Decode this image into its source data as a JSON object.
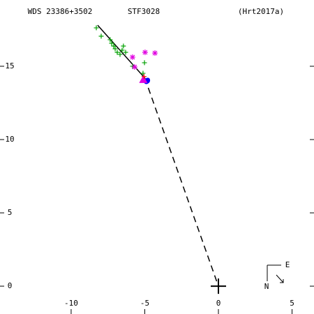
{
  "chart_data": {
    "type": "scatter",
    "title": "WDS 23386+3502",
    "subtitle": "STF3028",
    "reference": "(Hrt2017a)",
    "xlim": [
      -14.83,
      6.49
    ],
    "ylim": [
      -1.9,
      19.52
    ],
    "xticks": [
      -10,
      -5,
      0,
      5
    ],
    "yticks": [
      0,
      5,
      10,
      15
    ],
    "compass": {
      "east": "E",
      "north": "N"
    },
    "series": [
      {
        "marker": "line",
        "dash": false,
        "color": "#000000",
        "x": [
          -8.2,
          -5.0
        ],
        "values": [
          17.8,
          14.2
        ]
      },
      {
        "marker": "line",
        "dash": true,
        "color": "#000000",
        "x": [
          -5.0,
          0
        ],
        "values": [
          14.2,
          0
        ]
      },
      {
        "marker": "plus",
        "color": "#00a000",
        "x": [
          -8.29,
          -7.96,
          -7.35,
          -7.25,
          -7.11,
          -7.01,
          -6.87,
          -6.68,
          -6.54,
          -6.45,
          -6.3,
          -5.83,
          -5.12,
          -5.02
        ],
        "values": [
          17.62,
          17.05,
          16.81,
          16.57,
          16.38,
          16.19,
          15.95,
          15.81,
          16.1,
          16.38,
          15.95,
          15.0,
          14.52,
          15.24
        ]
      },
      {
        "marker": "asterisk",
        "color": "#e000e0",
        "x": [
          -5.83,
          -4.98,
          -4.31,
          -5.69
        ],
        "values": [
          15.62,
          15.95,
          15.9,
          14.95
        ]
      },
      {
        "marker": "circle",
        "color": "#0000ff",
        "x": [
          -4.85
        ],
        "values": [
          14.0
        ]
      },
      {
        "marker": "triangle",
        "color": "#e000e0",
        "x": [
          -5.1
        ],
        "values": [
          14.1
        ]
      },
      {
        "marker": "plus",
        "color": "#ff0000",
        "x": [
          -5.05
        ],
        "values": [
          14.3
        ]
      },
      {
        "marker": "bigplus",
        "color": "#000000",
        "x": [
          0
        ],
        "values": [
          0
        ]
      }
    ]
  }
}
